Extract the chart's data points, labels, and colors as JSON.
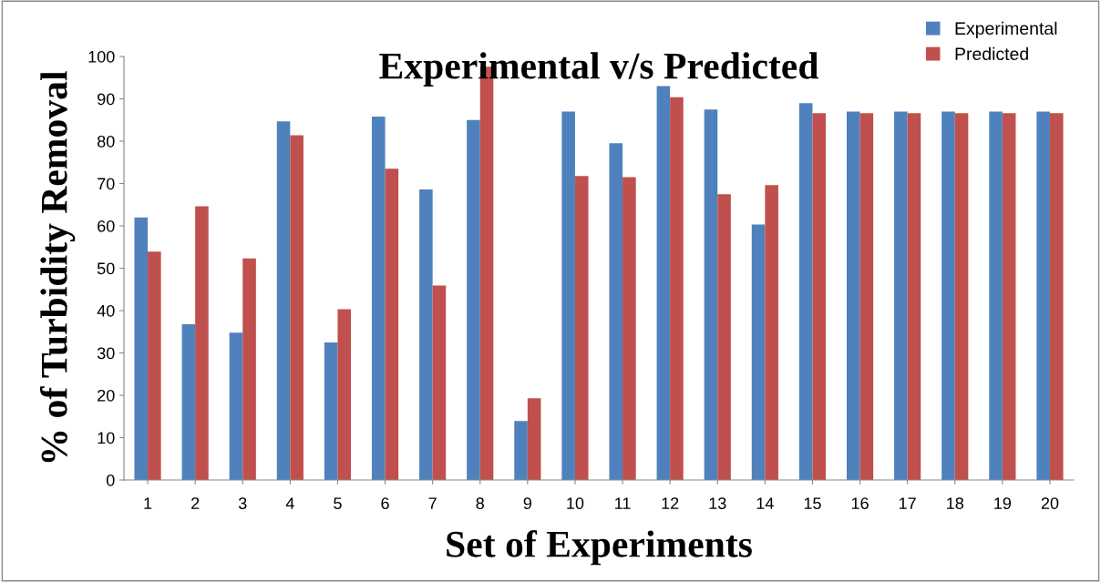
{
  "chart_data": {
    "type": "bar",
    "title": "Experimental v/s Predicted",
    "xlabel": "Set of Experiments",
    "ylabel": "% of Turbidity Removal",
    "categories": [
      "1",
      "2",
      "3",
      "4",
      "5",
      "6",
      "7",
      "8",
      "9",
      "10",
      "11",
      "12",
      "13",
      "14",
      "15",
      "16",
      "17",
      "18",
      "19",
      "20"
    ],
    "series": [
      {
        "name": "Experimental",
        "color": "#4f81bd",
        "values": [
          62.0,
          36.8,
          34.8,
          84.7,
          32.5,
          85.8,
          68.6,
          85.0,
          13.9,
          87.0,
          79.5,
          93.0,
          87.5,
          60.3,
          89.0,
          87.0,
          87.0,
          87.0,
          87.0,
          87.0
        ]
      },
      {
        "name": "Predicted",
        "color": "#c0504d",
        "values": [
          53.9,
          64.6,
          52.3,
          81.4,
          40.3,
          73.5,
          45.9,
          97.6,
          19.3,
          71.8,
          71.5,
          90.4,
          67.5,
          69.6,
          86.6,
          86.6,
          86.6,
          86.6,
          86.6,
          86.6
        ]
      }
    ],
    "ylim": [
      0,
      100
    ],
    "yticks": [
      0,
      10,
      20,
      30,
      40,
      50,
      60,
      70,
      80,
      90,
      100
    ],
    "grid": false,
    "legend": "top right"
  }
}
